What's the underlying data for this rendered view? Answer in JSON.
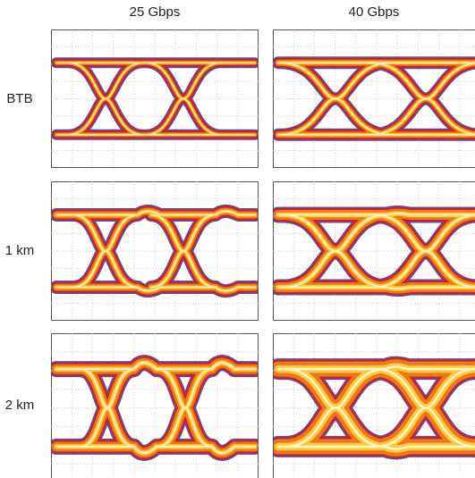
{
  "columns": [
    "25 Gbps",
    "40 Gbps"
  ],
  "rows": [
    "BTB",
    "1 km",
    "2 km"
  ]
}
